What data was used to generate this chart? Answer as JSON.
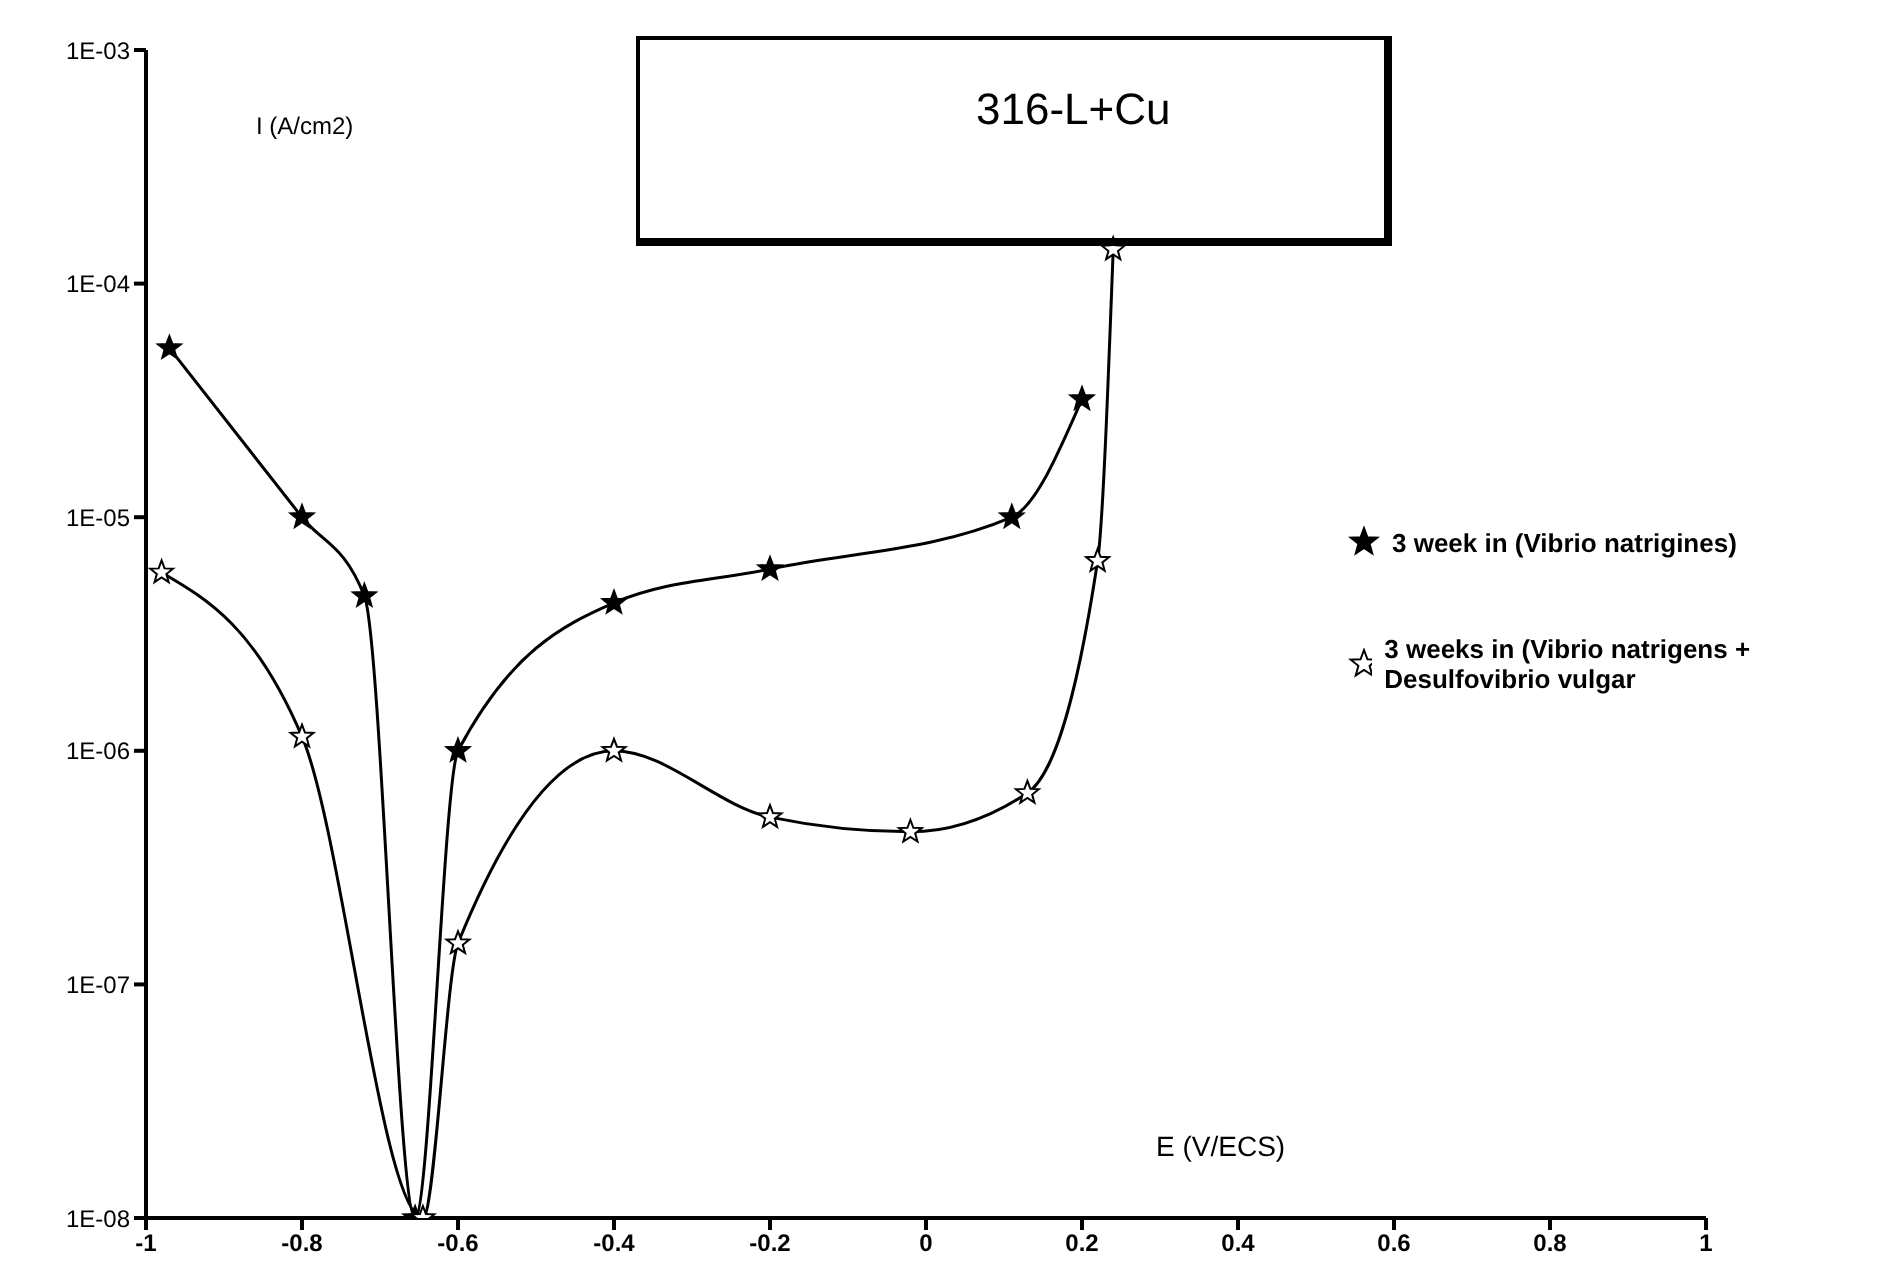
{
  "chart_data": {
    "type": "line",
    "title": "316-L+Cu",
    "xlabel": "E (V/ECS)",
    "ylabel": "I (A/cm2)",
    "log": "y",
    "marker": "star",
    "legend": "right",
    "xlim": [
      -1,
      1
    ],
    "xticks": [
      -1,
      -0.8,
      -0.6,
      -0.4,
      -0.2,
      0,
      0.2,
      0.4,
      0.6,
      0.8,
      1
    ],
    "ylim": [
      1e-08,
      0.001
    ],
    "yticks": [
      {
        "value": 1e-08,
        "label": "1E-08"
      },
      {
        "value": 1e-07,
        "label": "1E-07"
      },
      {
        "value": 1e-06,
        "label": "1E-06"
      },
      {
        "value": 1e-05,
        "label": "1E-05"
      },
      {
        "value": 0.0001,
        "label": "1E-04"
      },
      {
        "value": 0.001,
        "label": "1E-03"
      }
    ],
    "series": [
      {
        "name": "3 week in (Vibrio natrigines)",
        "color": "#000000",
        "x": [
          -0.97,
          -0.8,
          -0.72,
          -0.655,
          -0.6,
          -0.4,
          -0.2,
          0.11,
          0.2
        ],
        "values": [
          5.3e-05,
          1e-05,
          4.6e-06,
          1e-08,
          1e-06,
          4.3e-06,
          6e-06,
          1e-05,
          3.2e-05
        ]
      },
      {
        "name": "3 weeks in (Vibrio natrigens + Desulfovibrio vulgar",
        "color": "#000000",
        "x": [
          -0.98,
          -0.8,
          -0.645,
          -0.6,
          -0.4,
          -0.2,
          -0.02,
          0.13,
          0.22,
          0.24
        ],
        "values": [
          5.8e-06,
          1.15e-06,
          1e-08,
          1.5e-07,
          1e-06,
          5.2e-07,
          4.5e-07,
          6.6e-07,
          6.5e-06,
          0.00014
        ]
      }
    ]
  }
}
